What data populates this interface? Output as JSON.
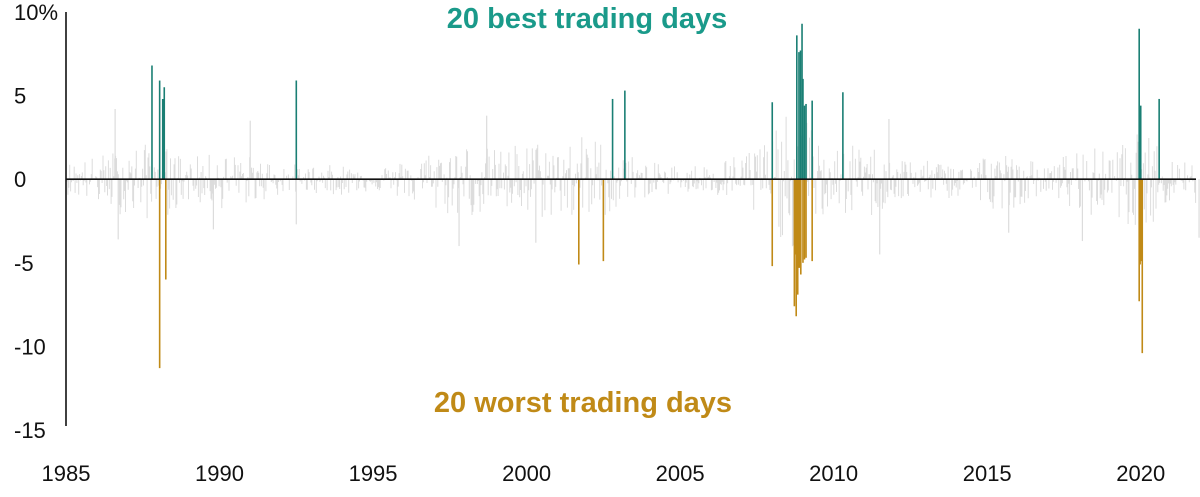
{
  "chart_data": {
    "type": "bar",
    "title": "",
    "xlabel": "",
    "ylabel": "",
    "xlim": [
      1985,
      2021.8
    ],
    "ylim": [
      -15,
      10
    ],
    "y_ticks": [
      {
        "value": 10,
        "label": "10%"
      },
      {
        "value": 5,
        "label": "5"
      },
      {
        "value": 0,
        "label": "0"
      },
      {
        "value": -5,
        "label": "-5"
      },
      {
        "value": -10,
        "label": "-10"
      },
      {
        "value": -15,
        "label": "-15"
      }
    ],
    "x_ticks": [
      {
        "value": 1985,
        "label": "1985"
      },
      {
        "value": 1990,
        "label": "1990"
      },
      {
        "value": 1995,
        "label": "1995"
      },
      {
        "value": 2000,
        "label": "2000"
      },
      {
        "value": 2005,
        "label": "2005"
      },
      {
        "value": 2010,
        "label": "2010"
      },
      {
        "value": 2015,
        "label": "2015"
      },
      {
        "value": 2020,
        "label": "2020"
      }
    ],
    "grid": false,
    "annotations": [
      {
        "text": "20 best trading days",
        "color": "#1a9a8a",
        "series": "best"
      },
      {
        "text": "20 worst trading days",
        "color": "#c08a17",
        "series": "worst"
      }
    ],
    "series": [
      {
        "key": "best",
        "color": "#1a7f74",
        "points": [
          {
            "x": 1987.8,
            "y": 6.8
          },
          {
            "x": 1988.05,
            "y": 5.9
          },
          {
            "x": 1988.15,
            "y": 4.8
          },
          {
            "x": 1988.2,
            "y": 5.5
          },
          {
            "x": 1992.5,
            "y": 5.9
          },
          {
            "x": 2002.8,
            "y": 4.8
          },
          {
            "x": 2003.2,
            "y": 5.3
          },
          {
            "x": 2008.0,
            "y": 4.6
          },
          {
            "x": 2008.8,
            "y": 8.6
          },
          {
            "x": 2008.87,
            "y": 7.6
          },
          {
            "x": 2008.92,
            "y": 7.7
          },
          {
            "x": 2008.97,
            "y": 9.3
          },
          {
            "x": 2009.0,
            "y": 6.0
          },
          {
            "x": 2009.05,
            "y": 4.4
          },
          {
            "x": 2009.3,
            "y": 4.7
          },
          {
            "x": 2010.3,
            "y": 5.2
          },
          {
            "x": 2019.95,
            "y": 9.0
          },
          {
            "x": 2020.0,
            "y": 4.4
          },
          {
            "x": 2020.6,
            "y": 4.8
          },
          {
            "x": 2009.1,
            "y": 4.5
          }
        ]
      },
      {
        "key": "worst",
        "color": "#c08a17",
        "points": [
          {
            "x": 1988.05,
            "y": -11.3
          },
          {
            "x": 1988.25,
            "y": -6.0
          },
          {
            "x": 2001.7,
            "y": -5.1
          },
          {
            "x": 2002.5,
            "y": -4.9
          },
          {
            "x": 2008.0,
            "y": -5.2
          },
          {
            "x": 2008.72,
            "y": -7.6
          },
          {
            "x": 2008.78,
            "y": -8.2
          },
          {
            "x": 2008.83,
            "y": -6.9
          },
          {
            "x": 2008.88,
            "y": -5.3
          },
          {
            "x": 2008.93,
            "y": -5.7
          },
          {
            "x": 2009.0,
            "y": -5.0
          },
          {
            "x": 2009.05,
            "y": -4.8
          },
          {
            "x": 2009.3,
            "y": -4.9
          },
          {
            "x": 2019.95,
            "y": -7.3
          },
          {
            "x": 2020.0,
            "y": -4.9
          },
          {
            "x": 2020.05,
            "y": -10.4
          },
          {
            "x": 2008.85,
            "y": -4.6
          },
          {
            "x": 2008.75,
            "y": -4.5
          },
          {
            "x": 2009.1,
            "y": -4.7
          },
          {
            "x": 2019.98,
            "y": -5.1
          }
        ]
      }
    ],
    "background_series": {
      "color": "#dcdcdc",
      "baseline_color": "#111111",
      "envelope": [
        {
          "x": 1985.0,
          "up": 1.0,
          "down": -0.9
        },
        {
          "x": 1986.0,
          "up": 1.4,
          "down": -1.5
        },
        {
          "x": 1987.0,
          "up": 2.0,
          "down": -2.3
        },
        {
          "x": 1988.0,
          "up": 2.2,
          "down": -2.5
        },
        {
          "x": 1989.0,
          "up": 1.3,
          "down": -1.4
        },
        {
          "x": 1990.0,
          "up": 1.6,
          "down": -1.8
        },
        {
          "x": 1991.0,
          "up": 1.4,
          "down": -1.5
        },
        {
          "x": 1992.0,
          "up": 1.0,
          "down": -1.0
        },
        {
          "x": 1993.0,
          "up": 0.8,
          "down": -0.8
        },
        {
          "x": 1994.0,
          "up": 0.9,
          "down": -1.0
        },
        {
          "x": 1995.0,
          "up": 0.7,
          "down": -0.7
        },
        {
          "x": 1996.0,
          "up": 1.1,
          "down": -1.2
        },
        {
          "x": 1997.0,
          "up": 1.8,
          "down": -2.0
        },
        {
          "x": 1998.0,
          "up": 2.2,
          "down": -2.4
        },
        {
          "x": 1999.0,
          "up": 1.8,
          "down": -1.9
        },
        {
          "x": 2000.0,
          "up": 2.4,
          "down": -2.5
        },
        {
          "x": 2001.0,
          "up": 2.2,
          "down": -2.3
        },
        {
          "x": 2002.0,
          "up": 2.8,
          "down": -2.8
        },
        {
          "x": 2003.0,
          "up": 1.8,
          "down": -1.8
        },
        {
          "x": 2004.0,
          "up": 1.0,
          "down": -1.0
        },
        {
          "x": 2005.0,
          "up": 0.9,
          "down": -0.9
        },
        {
          "x": 2006.0,
          "up": 0.9,
          "down": -0.9
        },
        {
          "x": 2007.0,
          "up": 1.7,
          "down": -1.8
        },
        {
          "x": 2008.0,
          "up": 2.8,
          "down": -3.0
        },
        {
          "x": 2008.8,
          "up": 4.5,
          "down": -4.5
        },
        {
          "x": 2009.5,
          "up": 2.5,
          "down": -2.5
        },
        {
          "x": 2010.0,
          "up": 1.8,
          "down": -2.0
        },
        {
          "x": 2011.0,
          "up": 2.2,
          "down": -2.6
        },
        {
          "x": 2012.0,
          "up": 1.4,
          "down": -1.5
        },
        {
          "x": 2013.0,
          "up": 1.1,
          "down": -1.2
        },
        {
          "x": 2014.0,
          "up": 1.1,
          "down": -1.2
        },
        {
          "x": 2015.0,
          "up": 1.6,
          "down": -1.8
        },
        {
          "x": 2016.0,
          "up": 1.5,
          "down": -1.7
        },
        {
          "x": 2017.0,
          "up": 0.7,
          "down": -0.6
        },
        {
          "x": 2018.0,
          "up": 2.2,
          "down": -2.6
        },
        {
          "x": 2019.0,
          "up": 1.6,
          "down": -1.8
        },
        {
          "x": 2020.0,
          "up": 3.0,
          "down": -3.5
        },
        {
          "x": 2020.5,
          "up": 2.2,
          "down": -2.5
        },
        {
          "x": 2021.0,
          "up": 1.3,
          "down": -1.4
        },
        {
          "x": 2021.8,
          "up": 1.6,
          "down": -1.7
        }
      ],
      "spikes": [
        {
          "x": 1986.6,
          "y": 4.2
        },
        {
          "x": 1986.7,
          "y": -3.6
        },
        {
          "x": 1989.8,
          "y": -3.0
        },
        {
          "x": 1991.0,
          "y": 3.5
        },
        {
          "x": 1992.5,
          "y": -2.7
        },
        {
          "x": 1997.8,
          "y": -4.0
        },
        {
          "x": 1998.7,
          "y": 3.8
        },
        {
          "x": 2000.3,
          "y": -3.8
        },
        {
          "x": 2011.5,
          "y": -4.5
        },
        {
          "x": 2011.8,
          "y": 3.6
        },
        {
          "x": 2015.7,
          "y": -3.2
        },
        {
          "x": 2018.1,
          "y": -3.7
        },
        {
          "x": 2021.9,
          "y": -3.5
        }
      ]
    }
  }
}
